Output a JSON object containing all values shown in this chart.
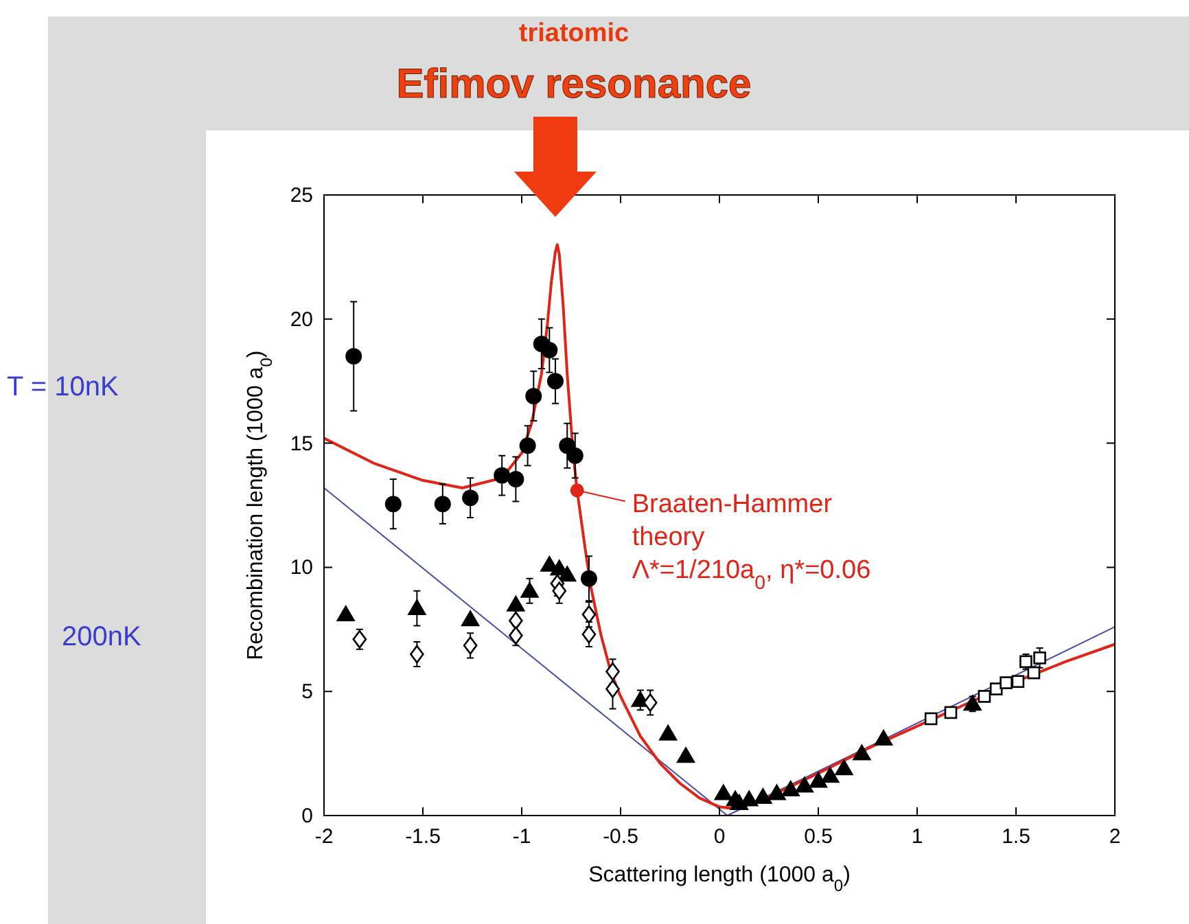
{
  "chart_data": {
    "type": "scatter",
    "title": "Efimov resonance",
    "subtitle": "triatomic",
    "xlabel": "Scattering length (1000 a$_{0}$)",
    "ylabel": "Recombination length (1000 a$_{0}$)",
    "xlim": [
      -2,
      2
    ],
    "ylim": [
      0,
      25
    ],
    "xticks": [
      -2,
      -1.5,
      -1,
      -0.5,
      0,
      0.5,
      1,
      1.5,
      2
    ],
    "yticks": [
      0,
      5,
      10,
      15,
      20,
      25
    ],
    "grid": false,
    "annotations": [
      "T = 10nK",
      "200nK",
      {
        "text": "Braaten-Hammer\ntheory\nΛ*=1/210a$_{0}$, η*=0.06",
        "x": -0.72,
        "y": 13.1
      }
    ],
    "series": [
      {
        "type": "line",
        "color": "#4a4aa8",
        "x": [
          -2,
          0.04,
          2
        ],
        "values": [
          13.2,
          0,
          7.6
        ]
      },
      {
        "type": "line",
        "color": "#e02418",
        "x": [
          -2,
          -1.75,
          -1.5,
          -1.3,
          -1.1,
          -1.0,
          -0.95,
          -0.9,
          -0.87,
          -0.85,
          -0.83,
          -0.82,
          -0.81,
          -0.79,
          -0.77,
          -0.74,
          -0.72,
          -0.68,
          -0.65,
          -0.6,
          -0.55,
          -0.5,
          -0.4,
          -0.3,
          -0.2,
          -0.1,
          0,
          0.05,
          0.1,
          0.2,
          0.3,
          0.5,
          0.75,
          1,
          1.25,
          1.5,
          1.75,
          2
        ],
        "values": [
          15.2,
          14.2,
          13.5,
          13.2,
          13.6,
          14.6,
          15.8,
          17.8,
          19.8,
          21.5,
          22.7,
          23,
          22.6,
          20.5,
          17.8,
          14.6,
          13.1,
          10.8,
          9.2,
          7.3,
          5.8,
          4.8,
          3.2,
          2.1,
          1.3,
          0.7,
          0.35,
          0.3,
          0.35,
          0.6,
          0.95,
          1.7,
          2.7,
          3.6,
          4.5,
          5.4,
          6.2,
          6.9
        ]
      },
      {
        "color": "#000000",
        "marker": "circle",
        "x": [
          -1.85,
          -1.65,
          -1.4,
          -1.26,
          -1.1,
          -1.03,
          -0.97,
          -0.94,
          -0.9,
          -0.86,
          -0.83,
          -0.77,
          -0.73,
          -0.66
        ],
        "values": [
          18.5,
          12.55,
          12.55,
          12.8,
          13.7,
          13.55,
          14.9,
          16.9,
          19.0,
          18.75,
          17.5,
          14.9,
          14.5,
          9.55
        ],
        "errors": [
          2.2,
          1.0,
          0.8,
          0.8,
          0.8,
          0.9,
          0.8,
          1.0,
          1.0,
          0.9,
          0.9,
          0.9,
          0.9,
          0.9
        ]
      },
      {
        "color": "#000000",
        "marker": "triangle",
        "x": [
          -1.89,
          -1.53,
          -1.26,
          -1.03,
          -0.96,
          -0.86,
          -0.81,
          -0.77,
          -0.4,
          -0.26,
          -0.17,
          0.02,
          0.08,
          0.1,
          0.15,
          0.22,
          0.29,
          0.36,
          0.43,
          0.5,
          0.56,
          0.63,
          0.72,
          0.83,
          1.28
        ],
        "values": [
          8.1,
          8.35,
          7.9,
          8.5,
          9.05,
          10.1,
          9.95,
          9.7,
          4.65,
          3.3,
          2.4,
          0.9,
          0.65,
          0.5,
          0.65,
          0.75,
          0.9,
          1.05,
          1.2,
          1.4,
          1.6,
          1.9,
          2.5,
          3.1,
          4.5
        ],
        "errors": [
          null,
          0.7,
          null,
          null,
          0.5,
          null,
          null,
          null,
          0.4,
          null,
          null,
          null,
          null,
          null,
          null,
          null,
          null,
          null,
          null,
          null,
          null,
          null,
          null,
          null,
          0.3
        ]
      },
      {
        "color": "#000000",
        "marker": "diamond",
        "x": [
          -1.82,
          -1.53,
          -1.26,
          -1.03,
          -1.03,
          -0.82,
          -0.81,
          -0.66,
          -0.66,
          -0.54,
          -0.54,
          -0.35
        ],
        "values": [
          7.1,
          6.5,
          6.85,
          7.85,
          7.25,
          9.35,
          9.05,
          8.1,
          7.3,
          5.8,
          5.1,
          4.55
        ],
        "errors": [
          0.4,
          0.5,
          0.5,
          0.4,
          0.4,
          0.5,
          0.5,
          0.5,
          0.5,
          0.5,
          0.8,
          0.5
        ]
      },
      {
        "color": "#000000",
        "marker": "square",
        "x": [
          1.07,
          1.17,
          1.34,
          1.4,
          1.45,
          1.51,
          1.55,
          1.59,
          1.62
        ],
        "values": [
          3.9,
          4.15,
          4.8,
          5.1,
          5.35,
          5.4,
          6.2,
          5.75,
          6.35
        ],
        "errors": [
          null,
          null,
          null,
          null,
          null,
          null,
          0.3,
          null,
          0.4
        ]
      }
    ]
  }
}
